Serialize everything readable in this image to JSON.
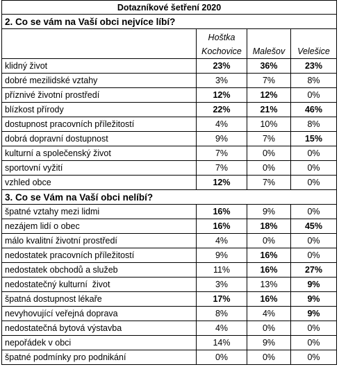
{
  "title": "Dotazníkové šetření 2020",
  "sections": [
    {
      "heading": "2. Co se vám na Vaší obci nejvíce líbí?",
      "columns": [
        "Hoštka Kochovice",
        "Malešov",
        "Velešice"
      ],
      "rows": [
        {
          "label": "klidný život",
          "values": [
            "23%",
            "36%",
            "23%"
          ],
          "bold": [
            true,
            true,
            true
          ]
        },
        {
          "label": "dobré mezilidské vztahy",
          "values": [
            "3%",
            "7%",
            "8%"
          ],
          "bold": [
            false,
            false,
            false
          ]
        },
        {
          "label": "příznivé životní prostředí",
          "values": [
            "12%",
            "12%",
            "0%"
          ],
          "bold": [
            true,
            true,
            false
          ]
        },
        {
          "label": "blízkost přírody",
          "values": [
            "22%",
            "21%",
            "46%"
          ],
          "bold": [
            true,
            true,
            true
          ]
        },
        {
          "label": "dostupnost pracovních příležitostí",
          "values": [
            "4%",
            "10%",
            "8%"
          ],
          "bold": [
            false,
            false,
            false
          ]
        },
        {
          "label": "dobrá dopravní dostupnost",
          "values": [
            "9%",
            "7%",
            "15%"
          ],
          "bold": [
            false,
            false,
            true
          ]
        },
        {
          "label": "kulturní a společenský život",
          "values": [
            "7%",
            "0%",
            "0%"
          ],
          "bold": [
            false,
            false,
            false
          ]
        },
        {
          "label": "sportovní vyžití",
          "values": [
            "7%",
            "0%",
            "0%"
          ],
          "bold": [
            false,
            false,
            false
          ]
        },
        {
          "label": "vzhled obce",
          "values": [
            "12%",
            "7%",
            "0%"
          ],
          "bold": [
            true,
            false,
            false
          ]
        }
      ]
    },
    {
      "heading": "3. Co se Vám na Vaší obci nelíbí?",
      "rows": [
        {
          "label": "špatné vztahy mezi lidmi",
          "values": [
            "16%",
            "9%",
            "0%"
          ],
          "bold": [
            true,
            false,
            false
          ]
        },
        {
          "label": "nezájem lidí o obec",
          "values": [
            "16%",
            "18%",
            "45%"
          ],
          "bold": [
            true,
            true,
            true
          ]
        },
        {
          "label": "málo kvalitní životní prostředí",
          "values": [
            "4%",
            "0%",
            "0%"
          ],
          "bold": [
            false,
            false,
            false
          ]
        },
        {
          "label": "nedostatek pracovních příležitostí",
          "values": [
            "9%",
            "16%",
            "0%"
          ],
          "bold": [
            false,
            true,
            false
          ]
        },
        {
          "label": "nedostatek obchodů a služeb",
          "values": [
            "11%",
            "16%",
            "27%"
          ],
          "bold": [
            false,
            true,
            true
          ]
        },
        {
          "label": "nedostatečný kulturní  život",
          "values": [
            "3%",
            "13%",
            "9%"
          ],
          "bold": [
            false,
            false,
            true
          ]
        },
        {
          "label": "špatná dostupnost lékaře",
          "values": [
            "17%",
            "16%",
            "9%"
          ],
          "bold": [
            true,
            true,
            true
          ]
        },
        {
          "label": "nevyhovující veřejná doprava",
          "values": [
            "8%",
            "4%",
            "9%"
          ],
          "bold": [
            false,
            false,
            true
          ]
        },
        {
          "label": "nedostatečná bytová výstavba",
          "values": [
            "4%",
            "0%",
            "0%"
          ],
          "bold": [
            false,
            false,
            false
          ]
        },
        {
          "label": "nepořádek v obci",
          "values": [
            "14%",
            "9%",
            "0%"
          ],
          "bold": [
            false,
            false,
            false
          ]
        },
        {
          "label": "špatné podmínky pro podnikání",
          "values": [
            "0%",
            "0%",
            "0%"
          ],
          "bold": [
            false,
            false,
            false
          ]
        }
      ]
    }
  ]
}
